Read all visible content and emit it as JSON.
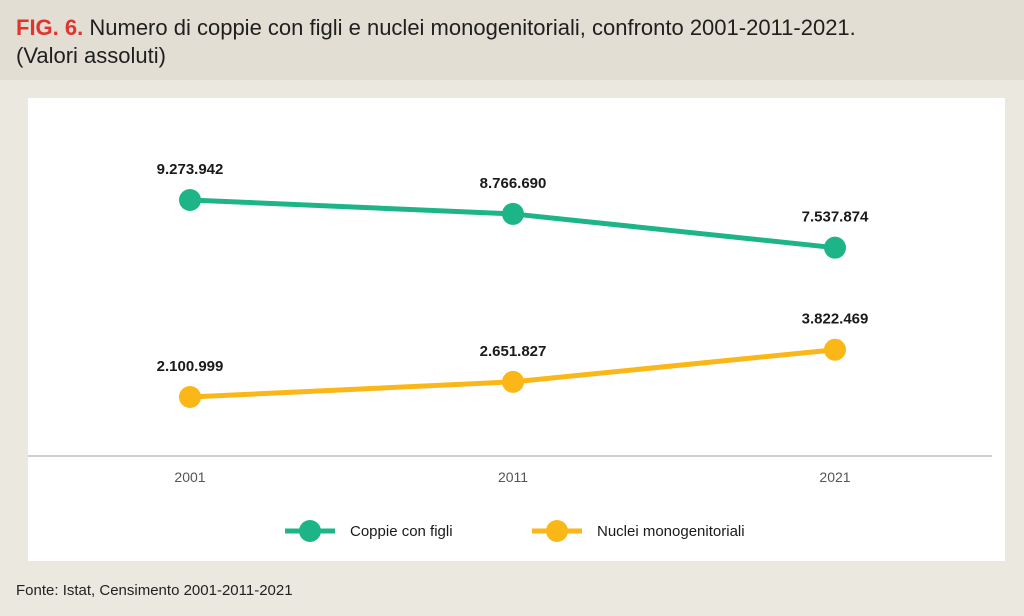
{
  "header": {
    "fig_label": "FIG. 6.",
    "title_text": "Numero di coppie con figli e nuclei monogenitoriali, confronto 2001-2011-2021.",
    "subtitle": "(Valori assoluti)"
  },
  "source": "Fonte: Istat, Censimento 2001-2011-2021",
  "chart_data": {
    "type": "line",
    "categories": [
      "2001",
      "2011",
      "2021"
    ],
    "series": [
      {
        "name": "Coppie con figli",
        "color": "#1db588",
        "values": [
          9273942,
          8766690,
          7537874
        ],
        "labels": [
          "9.273.942",
          "8.766.690",
          "7.537.874"
        ]
      },
      {
        "name": "Nuclei monogenitoriali",
        "color": "#fbb617",
        "values": [
          2100999,
          2651827,
          3822469
        ],
        "labels": [
          "2.100.999",
          "2.651.827",
          "3.822.469"
        ]
      }
    ],
    "grid": false,
    "legend_position": "bottom"
  }
}
